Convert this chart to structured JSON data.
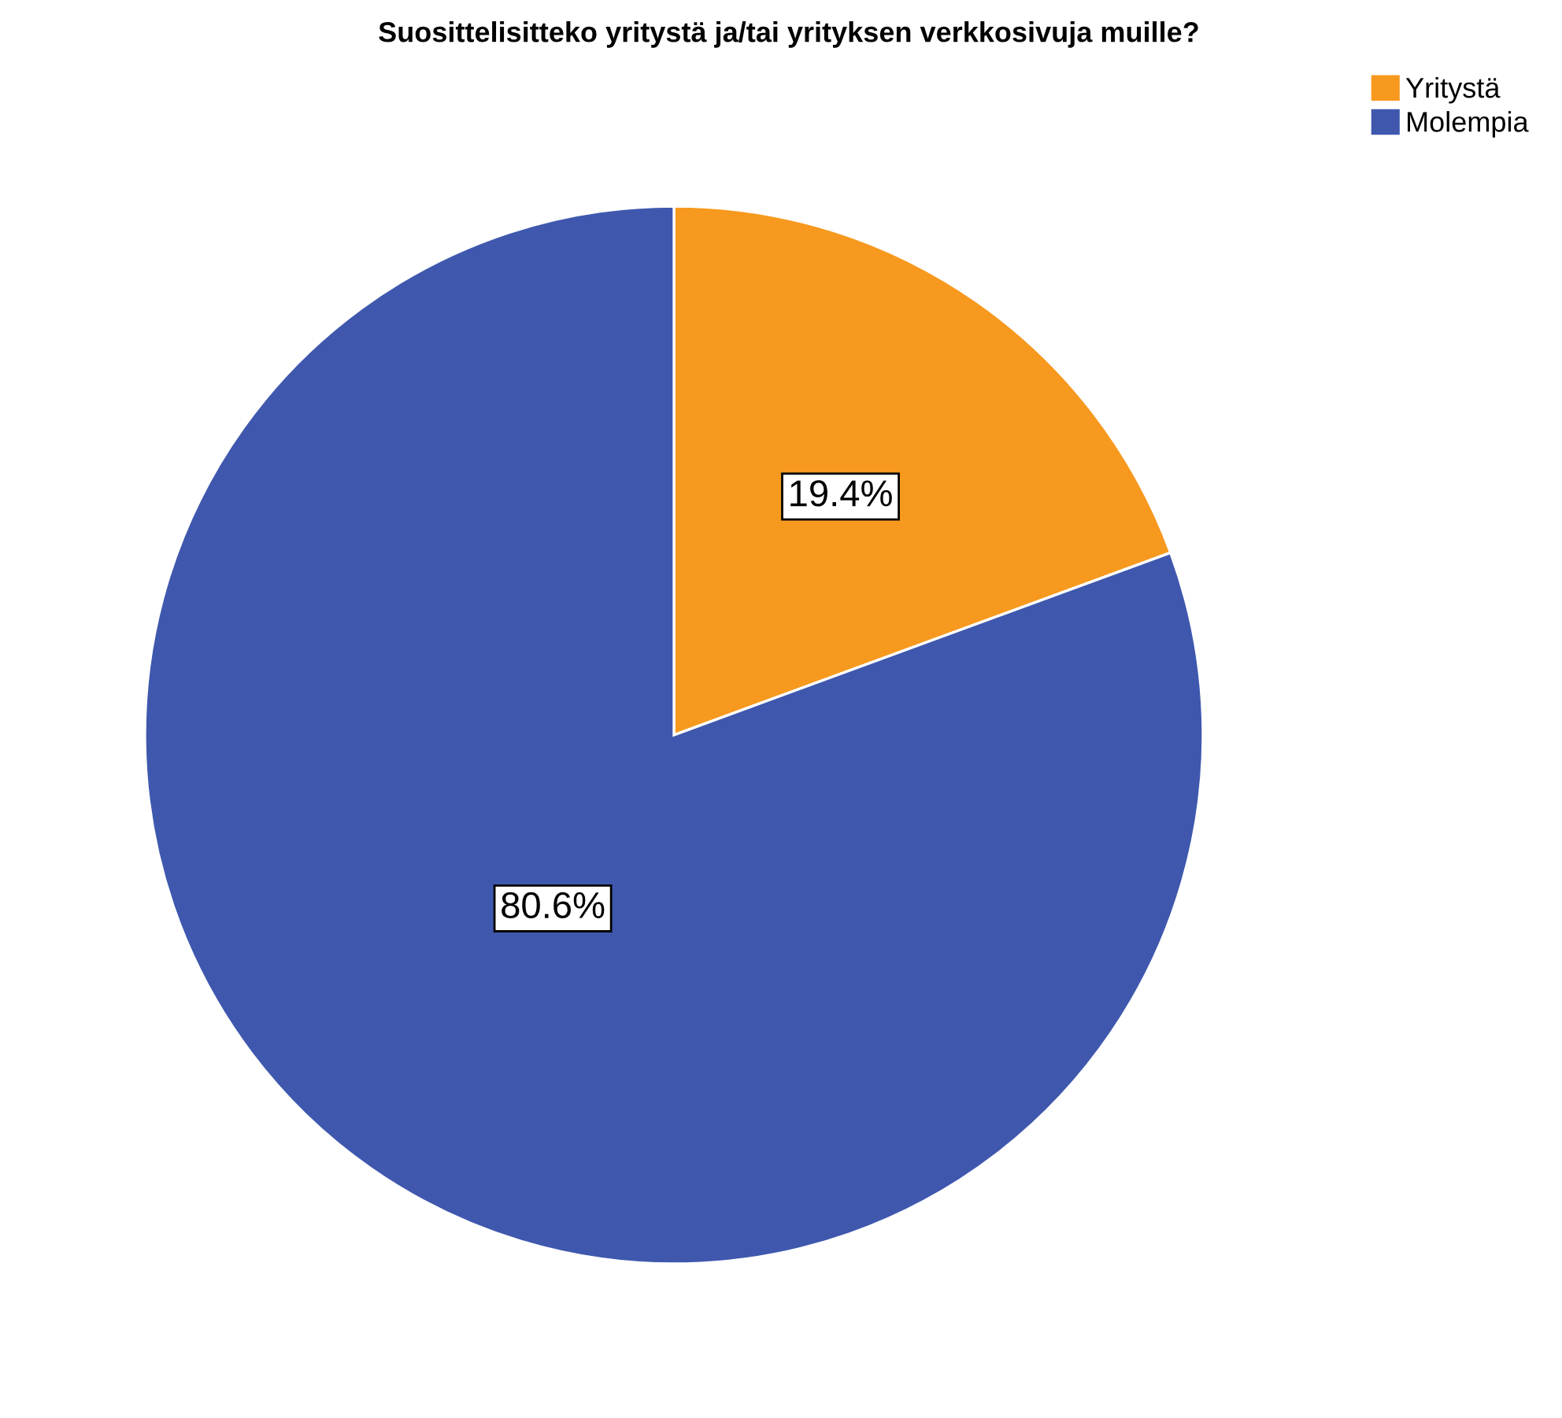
{
  "chart_data": {
    "type": "pie",
    "title": "Suosittelisitteko yritystä ja/tai yrityksen verkkosivuja muille?",
    "categories": [
      "Yritystä",
      "Molempia"
    ],
    "values": [
      19.4,
      80.6
    ],
    "colors": [
      "#f7991e",
      "#3f58ae"
    ],
    "value_labels": [
      "19.4%",
      "80.6%"
    ],
    "legend": "top right"
  }
}
